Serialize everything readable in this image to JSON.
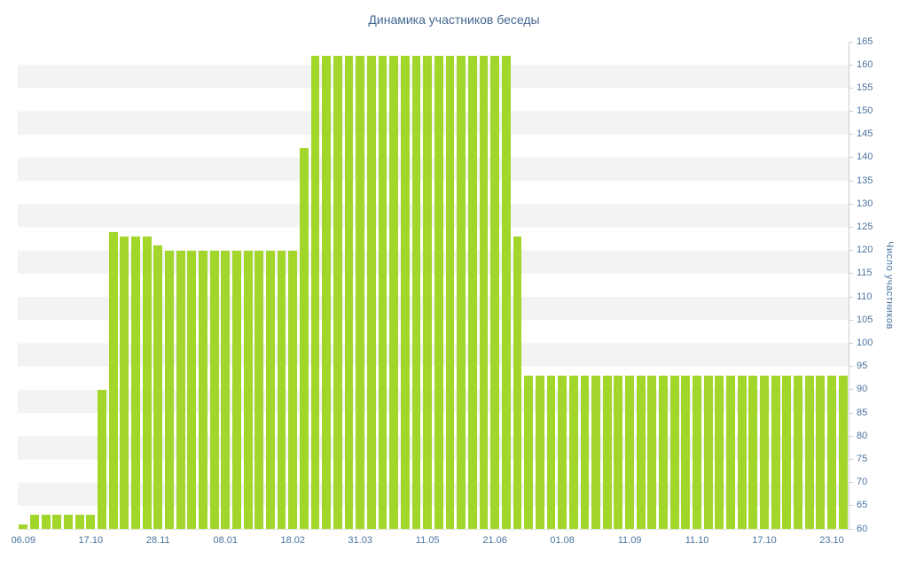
{
  "chart_data": {
    "type": "bar",
    "title": "Динамика участников беседы",
    "ylabel": "Число участников",
    "xlabel": "",
    "ylim": [
      60,
      165
    ],
    "y_tick_step": 5,
    "grid": "striped-bands",
    "legend": "none",
    "y_axis_side": "right",
    "y_ticks": [
      60,
      65,
      70,
      75,
      80,
      85,
      90,
      95,
      100,
      105,
      110,
      115,
      120,
      125,
      130,
      135,
      140,
      145,
      150,
      155,
      160,
      165
    ],
    "x_ticks": [
      {
        "label": "06.09",
        "bar": 0
      },
      {
        "label": "17.10",
        "bar": 6
      },
      {
        "label": "28.11",
        "bar": 12
      },
      {
        "label": "08.01",
        "bar": 18
      },
      {
        "label": "18.02",
        "bar": 24
      },
      {
        "label": "31.03",
        "bar": 30
      },
      {
        "label": "11.05",
        "bar": 36
      },
      {
        "label": "21.06",
        "bar": 42
      },
      {
        "label": "01.08",
        "bar": 48
      },
      {
        "label": "11.09",
        "bar": 54
      },
      {
        "label": "11.10",
        "bar": 60
      },
      {
        "label": "17.10",
        "bar": 66
      },
      {
        "label": "23.10",
        "bar": 72
      }
    ],
    "values": [
      61,
      63,
      63,
      63,
      63,
      63,
      63,
      90,
      124,
      123,
      123,
      123,
      121,
      120,
      120,
      120,
      120,
      120,
      120,
      120,
      120,
      120,
      120,
      120,
      120,
      142,
      162,
      162,
      162,
      162,
      162,
      162,
      162,
      162,
      162,
      162,
      162,
      162,
      162,
      162,
      162,
      162,
      162,
      162,
      123,
      93,
      93,
      93,
      93,
      93,
      93,
      93,
      93,
      93,
      93,
      93,
      93,
      93,
      93,
      93,
      93,
      93,
      93,
      93,
      93,
      93,
      93,
      93,
      93,
      93,
      93,
      93,
      93,
      93
    ]
  },
  "colors": {
    "bar": "#a3d62a",
    "stripe": "#f3f3f3",
    "background": "#ffffff",
    "title_text": "#44678f",
    "tick_text": "#4a74a0",
    "axis_line": "#cccccc",
    "baseline": "#e2e2e2"
  }
}
